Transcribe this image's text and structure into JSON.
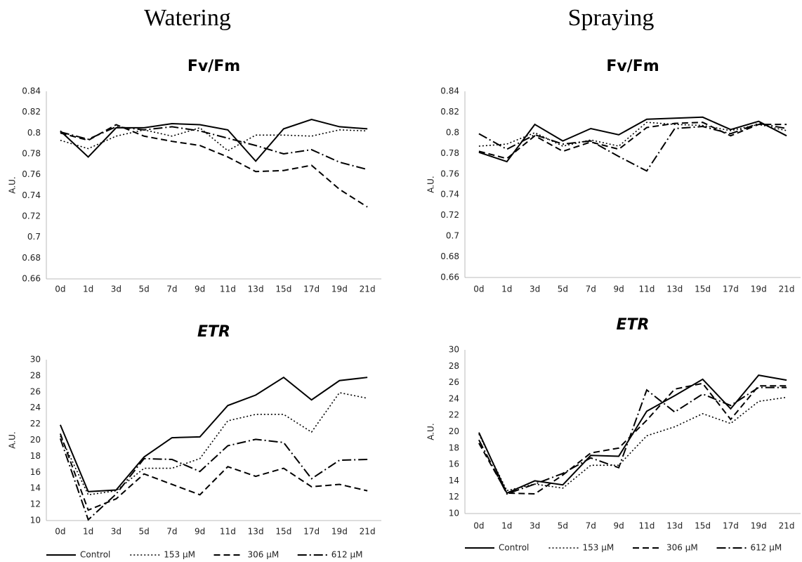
{
  "columns": [
    "Watering",
    "Spraying"
  ],
  "chart_data": [
    {
      "type": "line",
      "title": "Fv/Fm",
      "ylabel": "A.U.",
      "categories": [
        "0d",
        "1d",
        "3d",
        "5d",
        "7d",
        "9d",
        "11d",
        "13d",
        "15d",
        "17d",
        "19d",
        "21d"
      ],
      "ylim": [
        0.66,
        0.84
      ],
      "yticks": [
        0.66,
        0.68,
        0.7,
        0.72,
        0.74,
        0.76,
        0.78,
        0.8,
        0.82,
        0.84
      ],
      "series": [
        {
          "color": "#000000",
          "dash": "solid",
          "values": [
            0.802,
            0.777,
            0.805,
            0.805,
            0.809,
            0.808,
            0.803,
            0.773,
            0.804,
            0.813,
            0.806,
            0.804
          ]
        },
        {
          "color": "#000000",
          "dash": "dotted",
          "values": [
            0.793,
            0.785,
            0.797,
            0.803,
            0.797,
            0.805,
            0.783,
            0.798,
            0.798,
            0.797,
            0.803,
            0.802
          ]
        },
        {
          "color": "#000000",
          "dash": "dashed",
          "values": [
            0.8,
            0.793,
            0.808,
            0.797,
            0.792,
            0.788,
            0.777,
            0.763,
            0.764,
            0.769,
            0.746,
            0.729
          ]
        },
        {
          "color": "#000000",
          "dash": "dashdot",
          "values": [
            0.801,
            0.794,
            0.806,
            0.803,
            0.806,
            0.802,
            0.795,
            0.788,
            0.78,
            0.784,
            0.772,
            0.765
          ]
        }
      ]
    },
    {
      "type": "line",
      "title": "Fv/Fm",
      "ylabel": "A.U.",
      "categories": [
        "0d",
        "1d",
        "3d",
        "5d",
        "7d",
        "9d",
        "11d",
        "13d",
        "15d",
        "17d",
        "19d",
        "21d"
      ],
      "ylim": [
        0.66,
        0.84
      ],
      "yticks": [
        0.66,
        0.68,
        0.7,
        0.72,
        0.74,
        0.76,
        0.78,
        0.8,
        0.82,
        0.84
      ],
      "series": [
        {
          "color": "#000000",
          "dash": "solid",
          "values": [
            0.781,
            0.772,
            0.808,
            0.792,
            0.804,
            0.798,
            0.813,
            0.814,
            0.815,
            0.803,
            0.811,
            0.797
          ]
        },
        {
          "color": "#000000",
          "dash": "dotted",
          "values": [
            0.787,
            0.789,
            0.8,
            0.787,
            0.793,
            0.787,
            0.81,
            0.808,
            0.807,
            0.802,
            0.808,
            0.802
          ]
        },
        {
          "color": "#000000",
          "dash": "dashed",
          "values": [
            0.782,
            0.775,
            0.797,
            0.782,
            0.791,
            0.784,
            0.805,
            0.809,
            0.81,
            0.797,
            0.808,
            0.808
          ]
        },
        {
          "color": "#000000",
          "dash": "dashdot",
          "values": [
            0.799,
            0.784,
            0.798,
            0.789,
            0.792,
            0.777,
            0.763,
            0.804,
            0.806,
            0.799,
            0.809,
            0.804
          ]
        }
      ]
    },
    {
      "type": "line",
      "title": "ETR",
      "title_style": "italic",
      "ylabel": "A.U.",
      "categories": [
        "0d",
        "1d",
        "3d",
        "5d",
        "7d",
        "9d",
        "11d",
        "13d",
        "15d",
        "17d",
        "19d",
        "21d"
      ],
      "ylim": [
        10,
        30
      ],
      "yticks": [
        10,
        12,
        14,
        16,
        18,
        20,
        22,
        24,
        26,
        28,
        30
      ],
      "series": [
        {
          "name": "Control",
          "color": "#000000",
          "dash": "solid",
          "values": [
            21.9,
            13.6,
            13.8,
            17.9,
            20.3,
            20.4,
            24.3,
            25.6,
            27.8,
            25.0,
            27.4,
            27.8
          ]
        },
        {
          "name": "153 µM",
          "color": "#000000",
          "dash": "dotted",
          "values": [
            20.5,
            13.2,
            13.7,
            16.5,
            16.5,
            17.7,
            22.4,
            23.2,
            23.2,
            21.0,
            25.9,
            25.2
          ]
        },
        {
          "name": "306 µM",
          "color": "#000000",
          "dash": "dashed",
          "values": [
            20.8,
            11.3,
            12.7,
            15.8,
            14.5,
            13.2,
            16.7,
            15.5,
            16.5,
            14.2,
            14.5,
            13.7
          ]
        },
        {
          "name": "612 µM",
          "color": "#000000",
          "dash": "dashdot",
          "values": [
            20.2,
            10.1,
            13.3,
            17.7,
            17.6,
            16.1,
            19.3,
            20.1,
            19.7,
            15.2,
            17.5,
            17.6
          ]
        }
      ]
    },
    {
      "type": "line",
      "title": "ETR",
      "title_style": "italic",
      "ylabel": "A.U.",
      "categories": [
        "0d",
        "1d",
        "3d",
        "5d",
        "7d",
        "9d",
        "11d",
        "13d",
        "15d",
        "17d",
        "19d",
        "21d"
      ],
      "ylim": [
        10,
        30
      ],
      "yticks": [
        10,
        12,
        14,
        16,
        18,
        20,
        22,
        24,
        26,
        28,
        30
      ],
      "series": [
        {
          "name": "Control",
          "color": "#000000",
          "dash": "solid",
          "values": [
            19.9,
            12.5,
            14.0,
            13.5,
            17.1,
            17.0,
            22.5,
            24.4,
            26.4,
            22.8,
            26.9,
            26.3
          ]
        },
        {
          "name": "153 µM",
          "color": "#000000",
          "dash": "dotted",
          "values": [
            19.7,
            12.8,
            13.6,
            13.1,
            15.9,
            15.9,
            19.5,
            20.6,
            22.2,
            21.0,
            23.7,
            24.2
          ]
        },
        {
          "name": "306 µM",
          "color": "#000000",
          "dash": "dashed",
          "values": [
            18.6,
            12.5,
            12.4,
            14.7,
            17.4,
            18.0,
            21.4,
            25.2,
            25.9,
            21.5,
            25.6,
            25.6
          ]
        },
        {
          "name": "612 µM",
          "color": "#000000",
          "dash": "dashdot",
          "values": [
            19.0,
            12.4,
            13.6,
            14.9,
            16.8,
            15.6,
            25.1,
            22.4,
            24.6,
            23.2,
            25.4,
            25.4
          ]
        }
      ]
    }
  ]
}
